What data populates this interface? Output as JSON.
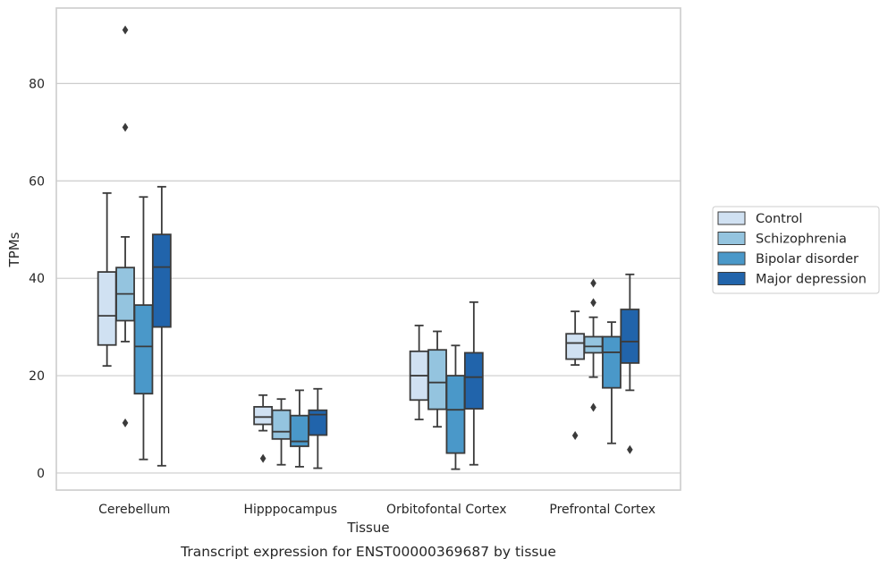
{
  "chart_data": {
    "type": "box",
    "title": "Transcript expression for ENST00000369687 by tissue",
    "xlabel": "Tissue",
    "ylabel": "TPMs",
    "ylim": [
      -3.5,
      95.5
    ],
    "yticks": [
      0,
      20,
      40,
      60,
      80
    ],
    "grid": "horizontal",
    "legend_position": "right",
    "categories": [
      "Cerebellum",
      "Hipppocampus",
      "Orbitofontal Cortex",
      "Prefrontal Cortex"
    ],
    "series": [
      {
        "name": "Control",
        "color": "#d0e1f2",
        "boxes": [
          {
            "whislo": 22,
            "q1": 26.3,
            "med": 32.3,
            "q3": 41.3,
            "whishi": 57.5,
            "fliers": []
          },
          {
            "whislo": 8.7,
            "q1": 10,
            "med": 11.5,
            "q3": 13.6,
            "whishi": 16,
            "fliers": [
              3
            ]
          },
          {
            "whislo": 11,
            "q1": 15,
            "med": 20,
            "q3": 25,
            "whishi": 30.3,
            "fliers": []
          },
          {
            "whislo": 22.2,
            "q1": 23.4,
            "med": 26.7,
            "q3": 28.6,
            "whishi": 33.2,
            "fliers": [
              7.7
            ]
          }
        ]
      },
      {
        "name": "Schizophrenia",
        "color": "#94c4df",
        "boxes": [
          {
            "whislo": 27,
            "q1": 31.3,
            "med": 36.8,
            "q3": 42.2,
            "whishi": 48.5,
            "fliers": [
              10.3,
              71,
              91
            ]
          },
          {
            "whislo": 1.7,
            "q1": 7,
            "med": 8.5,
            "q3": 12.9,
            "whishi": 15.2,
            "fliers": []
          },
          {
            "whislo": 9.5,
            "q1": 13.1,
            "med": 18.6,
            "q3": 25.3,
            "whishi": 29.1,
            "fliers": []
          },
          {
            "whislo": 19.7,
            "q1": 24.7,
            "med": 26,
            "q3": 28,
            "whishi": 32,
            "fliers": [
              13.5,
              35,
              39
            ]
          }
        ]
      },
      {
        "name": "Bipolar disorder",
        "color": "#4a98c9",
        "boxes": [
          {
            "whislo": 2.8,
            "q1": 16.3,
            "med": 26,
            "q3": 34.5,
            "whishi": 56.7,
            "fliers": []
          },
          {
            "whislo": 1.3,
            "q1": 5.5,
            "med": 6.5,
            "q3": 11.8,
            "whishi": 17,
            "fliers": []
          },
          {
            "whislo": 0.8,
            "q1": 4.1,
            "med": 13,
            "q3": 20,
            "whishi": 26.2,
            "fliers": []
          },
          {
            "whislo": 6.1,
            "q1": 17.5,
            "med": 24.8,
            "q3": 28,
            "whishi": 31,
            "fliers": []
          }
        ]
      },
      {
        "name": "Major depression",
        "color": "#2164ab",
        "boxes": [
          {
            "whislo": 1.5,
            "q1": 30,
            "med": 42.3,
            "q3": 49,
            "whishi": 58.8,
            "fliers": []
          },
          {
            "whislo": 1,
            "q1": 7.8,
            "med": 12,
            "q3": 12.9,
            "whishi": 17.3,
            "fliers": []
          },
          {
            "whislo": 1.7,
            "q1": 13.2,
            "med": 19.7,
            "q3": 24.7,
            "whishi": 35.1,
            "fliers": []
          },
          {
            "whislo": 17,
            "q1": 22.6,
            "med": 27,
            "q3": 33.6,
            "whishi": 40.8,
            "fliers": [
              4.8
            ]
          }
        ]
      }
    ]
  }
}
